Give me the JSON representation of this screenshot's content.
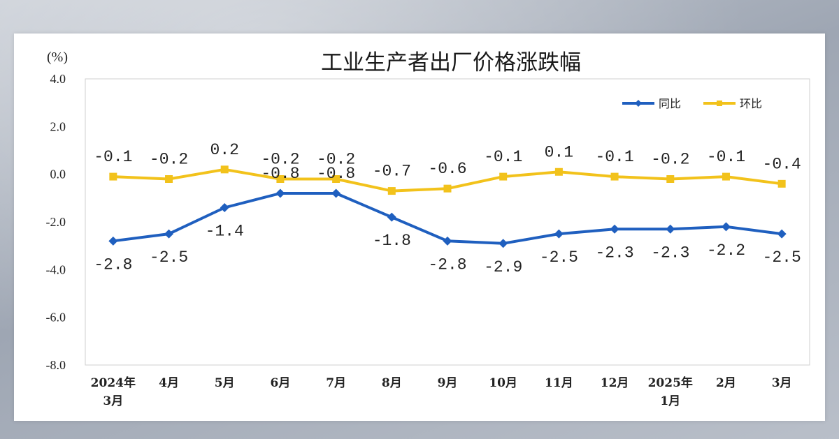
{
  "chart_data": {
    "type": "line",
    "title": "工业生产者出厂价格涨跌幅",
    "ylabel": "(%)",
    "xlabel": "",
    "ylim": [
      -8.0,
      4.0
    ],
    "yticks": [
      "4.0",
      "2.0",
      "0.0",
      "-2.0",
      "-4.0",
      "-6.0",
      "-8.0"
    ],
    "ytick_values": [
      4,
      2,
      0,
      -2,
      -4,
      -6,
      -8
    ],
    "categories": [
      [
        "2024年",
        "3月"
      ],
      [
        "4月"
      ],
      [
        "5月"
      ],
      [
        "6月"
      ],
      [
        "7月"
      ],
      [
        "8月"
      ],
      [
        "9月"
      ],
      [
        "10月"
      ],
      [
        "11月"
      ],
      [
        "12月"
      ],
      [
        "2025年",
        "1月"
      ],
      [
        "2月"
      ],
      [
        "3月"
      ]
    ],
    "legend_position": "top-right",
    "grid": false,
    "series": [
      {
        "name": "同比",
        "color": "#1f5fbf",
        "marker": "diamond",
        "values": [
          -2.8,
          -2.5,
          -1.4,
          -0.8,
          -0.8,
          -1.8,
          -2.8,
          -2.9,
          -2.5,
          -2.3,
          -2.3,
          -2.2,
          -2.5
        ],
        "labels": [
          "-2.8",
          "-2.5",
          "-1.4",
          "-0.8",
          "-0.8",
          "-1.8",
          "-2.8",
          "-2.9",
          "-2.5",
          "-2.3",
          "-2.3",
          "-2.2",
          "-2.5"
        ],
        "label_position": [
          "below",
          "below",
          "below",
          "above",
          "above",
          "below",
          "below",
          "below",
          "below",
          "below",
          "below",
          "below",
          "below"
        ]
      },
      {
        "name": "环比",
        "color": "#f2c21b",
        "marker": "square",
        "values": [
          -0.1,
          -0.2,
          0.2,
          -0.2,
          -0.2,
          -0.7,
          -0.6,
          -0.1,
          0.1,
          -0.1,
          -0.2,
          -0.1,
          -0.4
        ],
        "labels": [
          "-0.1",
          "-0.2",
          "0.2",
          "-0.2",
          "-0.2",
          "-0.7",
          "-0.6",
          "-0.1",
          "0.1",
          "-0.1",
          "-0.2",
          "-0.1",
          "-0.4"
        ],
        "label_position": [
          "above",
          "above",
          "above",
          "above",
          "above",
          "above",
          "above",
          "above",
          "above",
          "above",
          "above",
          "above",
          "above"
        ]
      }
    ]
  }
}
